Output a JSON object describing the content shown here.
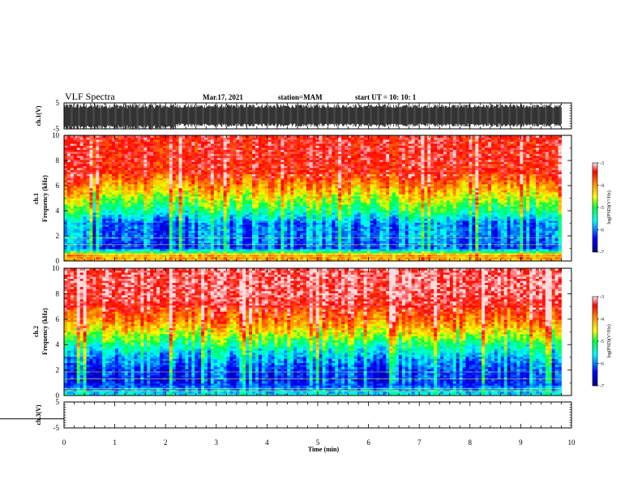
{
  "header": {
    "title": "VLF Spectra",
    "date": "Mar.17, 2021",
    "station": "station=MAM",
    "start": "start  UT =   10: 10: 1"
  },
  "colors": {
    "spectrum_scale": [
      "#00008b",
      "#0000ff",
      "#00bfff",
      "#00ffff",
      "#00ff7f",
      "#7fff00",
      "#ffff00",
      "#ff8c00",
      "#ff0000",
      "#ffe0e0"
    ]
  },
  "chart_data": [
    {
      "type": "line",
      "name": "ch1-waveform",
      "ylabel": "ch.1(V)",
      "ylim": [
        -5,
        5
      ],
      "yticks": [
        "5",
        "-5"
      ],
      "x_range": [
        0,
        10
      ],
      "trace_end_min": 9.8,
      "description_values": {
        "waveform_amplitude_V": [
          -5,
          5
        ]
      }
    },
    {
      "type": "heatmap",
      "name": "ch1-spectrogram",
      "ylabel": "ch.1\nFrequency (kHz)",
      "ylim": [
        0,
        10
      ],
      "yticks": [
        "0",
        "2",
        "4",
        "6",
        "8",
        "10"
      ],
      "x_range": [
        0,
        10
      ],
      "trace_end_min": 9.8,
      "colorbar": {
        "label": "log(PSD)(V²/Hz)",
        "range": [
          -7,
          -3
        ],
        "ticks": [
          "-3",
          "-4",
          "-5",
          "-6",
          "-7"
        ]
      },
      "band_profile_kHz": [
        [
          0,
          -4.2
        ],
        [
          0.5,
          -4.0
        ],
        [
          1,
          -6.2
        ],
        [
          2,
          -6.0
        ],
        [
          3,
          -6.0
        ],
        [
          4,
          -5.2
        ],
        [
          5,
          -4.6
        ],
        [
          6,
          -4.0
        ],
        [
          7,
          -3.5
        ],
        [
          8,
          -3.4
        ],
        [
          10,
          -3.4
        ]
      ]
    },
    {
      "type": "heatmap",
      "name": "ch2-spectrogram",
      "ylabel": "ch.2\nFrequency (kHz)",
      "ylim": [
        0,
        10
      ],
      "yticks": [
        "0",
        "2",
        "4",
        "6",
        "8",
        "10"
      ],
      "x_range": [
        0,
        10
      ],
      "trace_end_min": 9.8,
      "colorbar": {
        "label": "log(PSD)(V²/Hz)",
        "range": [
          -7,
          -3
        ],
        "ticks": [
          "-3",
          "-4",
          "-5",
          "-6",
          "-7"
        ]
      },
      "band_profile_kHz": [
        [
          0,
          -5.5
        ],
        [
          1,
          -6.3
        ],
        [
          2,
          -6.2
        ],
        [
          3,
          -5.8
        ],
        [
          4,
          -5.2
        ],
        [
          5,
          -4.4
        ],
        [
          6,
          -3.8
        ],
        [
          7,
          -3.4
        ],
        [
          8,
          -3.2
        ],
        [
          10,
          -3.2
        ]
      ]
    },
    {
      "type": "line",
      "name": "ch3-waveform",
      "ylabel": "ch.3(V)",
      "ylim": [
        -5,
        5
      ],
      "yticks": [
        "5",
        "-5"
      ],
      "x_range": [
        0,
        10
      ],
      "xlabel": "Time  (min)",
      "xticks": [
        "0",
        "1",
        "2",
        "3",
        "4",
        "5",
        "6",
        "7",
        "8",
        "9",
        "10"
      ],
      "level_V": -1.5
    }
  ]
}
